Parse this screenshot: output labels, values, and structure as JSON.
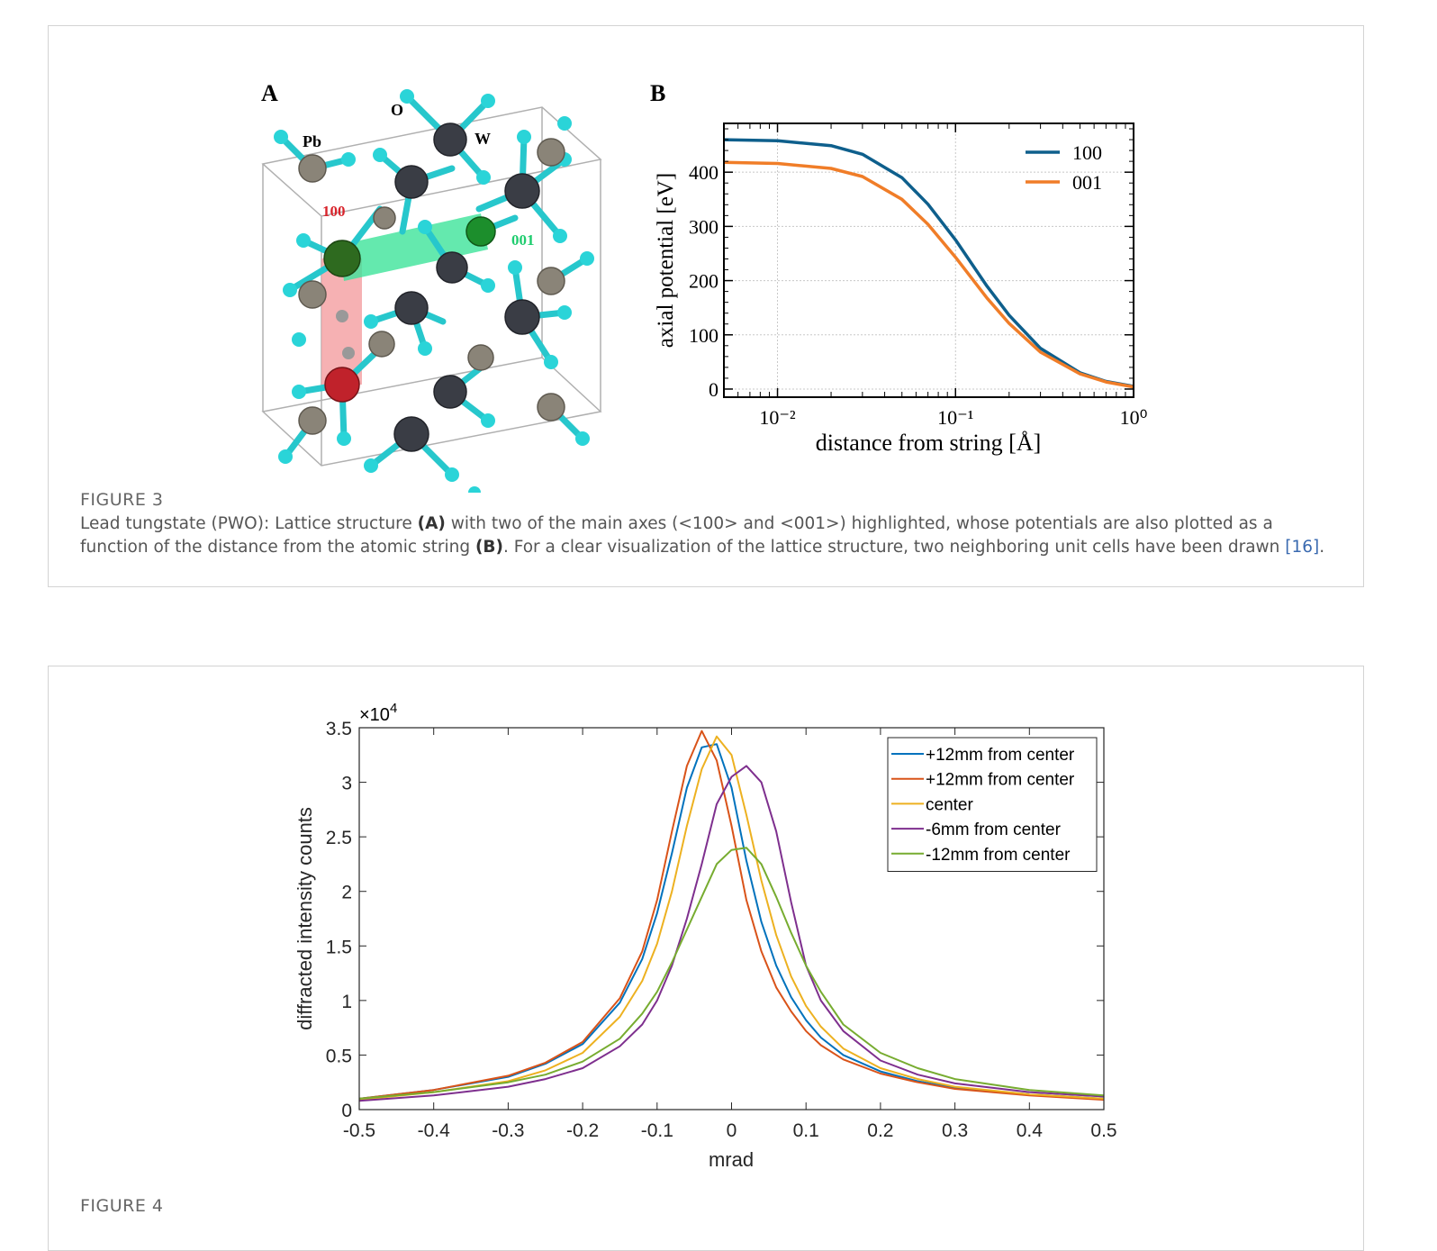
{
  "figure3": {
    "label": "FIGURE 3",
    "caption": {
      "part1": "Lead tungstate (PWO): Lattice structure ",
      "bold1": "(A)",
      "part2": " with two of the main axes (<100> and <001>) highlighted, whose potentials are also plotted as a function of the distance from the atomic string ",
      "bold2": "(B)",
      "part3": ". For a clear visualization of the lattice structure, two neighboring unit cells have been drawn ",
      "ref": "[16]",
      "part4": "."
    },
    "panelA": {
      "letter": "A",
      "atom_labels": {
        "o": "O",
        "w": "W",
        "pb": "Pb",
        "axis100": "100",
        "axis001": "001"
      },
      "colors": {
        "oxygen": "#2ad4d8",
        "tungsten": "#3a3d45",
        "lead": "#8a8478",
        "axis100": "#d8242c",
        "axis001": "#1ecc6e"
      }
    },
    "panelB": {
      "letter": "B",
      "chart_data": {
        "type": "line",
        "xlabel": "distance from string [Å]",
        "ylabel": "axial potential [eV]",
        "xscale": "log",
        "xlim": [
          0.005,
          1
        ],
        "ylim": [
          -15,
          490
        ],
        "xticks": [
          "10⁻²",
          "10⁻¹",
          "10⁰"
        ],
        "yticks": [
          0,
          100,
          200,
          300,
          400
        ],
        "grid": true,
        "legend": "top-right",
        "series": [
          {
            "name": "100",
            "color": "#0e5f8c",
            "x": [
              0.005,
              0.01,
              0.02,
              0.03,
              0.05,
              0.07,
              0.1,
              0.15,
              0.2,
              0.3,
              0.5,
              0.7,
              1.0
            ],
            "values": [
              460,
              458,
              449,
              433,
              390,
              341,
              275,
              190,
              136,
              75,
              30,
              14,
              5
            ]
          },
          {
            "name": "001",
            "color": "#f07d28",
            "x": [
              0.005,
              0.01,
              0.02,
              0.03,
              0.05,
              0.07,
              0.1,
              0.15,
              0.2,
              0.3,
              0.5,
              0.7,
              1.0
            ],
            "values": [
              418,
              416,
              407,
              392,
              350,
              304,
              243,
              168,
              121,
              68,
              28,
              13,
              4
            ]
          }
        ]
      }
    }
  },
  "figure4": {
    "label": "FIGURE 4",
    "chart_data": {
      "type": "line",
      "xlabel": "mrad",
      "ylabel": "diffracted intensity counts",
      "multiplier": "×10",
      "multiplier_exp": "4",
      "xlim": [
        -0.5,
        0.5
      ],
      "ylim": [
        0,
        3.5
      ],
      "xticks": [
        "-0.5",
        "-0.4",
        "-0.3",
        "-0.2",
        "-0.1",
        "0",
        "0.1",
        "0.2",
        "0.3",
        "0.4",
        "0.5"
      ],
      "yticks": [
        "0",
        "0.5",
        "1",
        "1.5",
        "2",
        "2.5",
        "3",
        "3.5"
      ],
      "legend": "top-right",
      "x": [
        -0.5,
        -0.4,
        -0.3,
        -0.25,
        -0.2,
        -0.15,
        -0.12,
        -0.1,
        -0.08,
        -0.06,
        -0.04,
        -0.02,
        0,
        0.02,
        0.04,
        0.06,
        0.08,
        0.1,
        0.12,
        0.15,
        0.2,
        0.25,
        0.3,
        0.4,
        0.5
      ],
      "series": [
        {
          "name": "+12mm from center",
          "color": "#0072bd",
          "values": [
            0.1,
            0.18,
            0.3,
            0.42,
            0.6,
            0.98,
            1.38,
            1.8,
            2.35,
            2.95,
            3.32,
            3.35,
            2.95,
            2.28,
            1.72,
            1.32,
            1.03,
            0.82,
            0.66,
            0.5,
            0.35,
            0.26,
            0.2,
            0.14,
            0.1
          ]
        },
        {
          "name": "+12mm from center",
          "color": "#d95319",
          "values": [
            0.1,
            0.18,
            0.31,
            0.43,
            0.62,
            1.02,
            1.45,
            1.92,
            2.55,
            3.15,
            3.47,
            3.2,
            2.6,
            1.92,
            1.45,
            1.12,
            0.9,
            0.72,
            0.59,
            0.46,
            0.33,
            0.25,
            0.19,
            0.13,
            0.09
          ]
        },
        {
          "name": "center",
          "color": "#edb120",
          "values": [
            0.09,
            0.16,
            0.26,
            0.36,
            0.52,
            0.85,
            1.18,
            1.52,
            2.0,
            2.6,
            3.12,
            3.42,
            3.25,
            2.7,
            2.1,
            1.6,
            1.22,
            0.95,
            0.76,
            0.56,
            0.38,
            0.28,
            0.21,
            0.14,
            0.1
          ]
        },
        {
          "name": "-6mm from center",
          "color": "#7e2f8e",
          "values": [
            0.08,
            0.13,
            0.21,
            0.28,
            0.38,
            0.58,
            0.78,
            1.0,
            1.32,
            1.75,
            2.25,
            2.8,
            3.05,
            3.15,
            3.0,
            2.55,
            1.9,
            1.32,
            1.0,
            0.72,
            0.45,
            0.32,
            0.24,
            0.16,
            0.12
          ]
        },
        {
          "name": "-12mm from center",
          "color": "#77ac30",
          "values": [
            0.1,
            0.16,
            0.25,
            0.32,
            0.44,
            0.65,
            0.88,
            1.08,
            1.35,
            1.65,
            1.95,
            2.25,
            2.38,
            2.4,
            2.25,
            1.95,
            1.62,
            1.32,
            1.08,
            0.78,
            0.52,
            0.38,
            0.28,
            0.18,
            0.13
          ]
        }
      ]
    }
  }
}
